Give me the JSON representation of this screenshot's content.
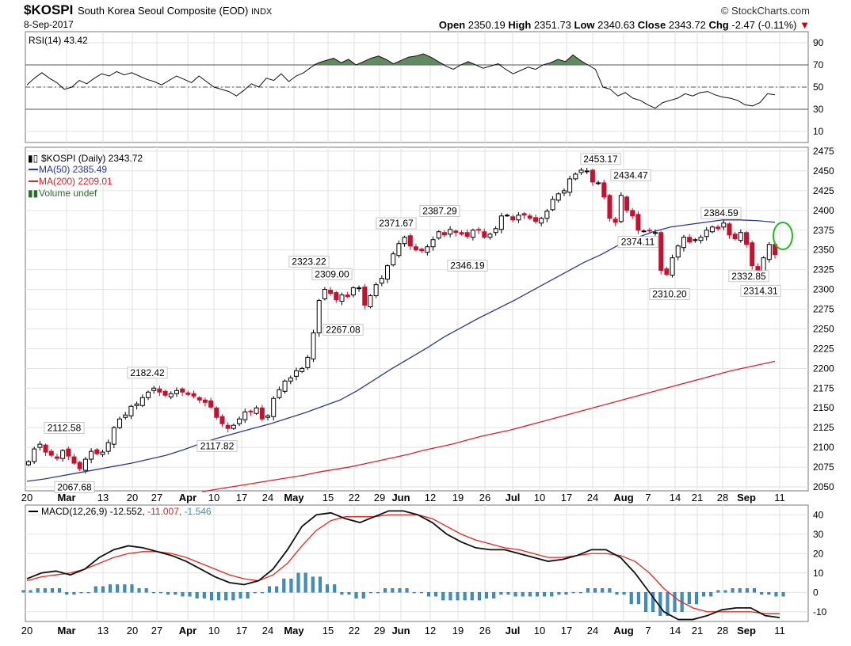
{
  "header": {
    "symbol": "$KOSPI",
    "name": "South Korea Seoul Composite (EOD)",
    "exchange": "INDX",
    "date": "8-Sep-2017",
    "brand": "© StockCharts.com",
    "open_label": "Open",
    "open": "2350.19",
    "high_label": "High",
    "high": "2351.73",
    "low_label": "Low",
    "low": "2340.63",
    "close_label": "Close",
    "close": "2343.72",
    "chg_label": "Chg",
    "chg": "-2.47 (-0.11%)"
  },
  "colors": {
    "ma50": "#2b3a8f",
    "ma200": "#d9232e",
    "up_candle": "#000000",
    "down_candle": "#c8102e",
    "rsi_fill": "#4f7d4f",
    "macd_hist": "#3b8fc4",
    "signal": "#e8261f",
    "highlight": "#22bb22"
  },
  "chart_data": [
    {
      "type": "line",
      "panel": "RSI",
      "legend": "RSI(14) 43.42",
      "ylim": [
        0,
        100
      ],
      "yticks": [
        10,
        30,
        50,
        70,
        90
      ],
      "reference_lines": [
        30,
        50,
        70
      ],
      "values": [
        52,
        58,
        63,
        58,
        54,
        48,
        50,
        56,
        53,
        58,
        62,
        60,
        64,
        61,
        63,
        60,
        57,
        55,
        52,
        56,
        60,
        57,
        54,
        60,
        55,
        50,
        48,
        46,
        42,
        47,
        53,
        50,
        58,
        56,
        62,
        55,
        60,
        63,
        68,
        72,
        74,
        76,
        72,
        75,
        70,
        73,
        76,
        78,
        75,
        71,
        74,
        77,
        78,
        80,
        77,
        73,
        69,
        66,
        70,
        73,
        70,
        67,
        69,
        71,
        66,
        62,
        65,
        68,
        66,
        70,
        72,
        75,
        73,
        79,
        74,
        70,
        66,
        50,
        48,
        42,
        45,
        40,
        38,
        34,
        31,
        36,
        38,
        40,
        44,
        42,
        45,
        46,
        43,
        41,
        40,
        38,
        34,
        33,
        36,
        44,
        43
      ]
    },
    {
      "type": "candlestick",
      "panel": "price",
      "title": "$KOSPI (Daily) 2343.72",
      "ylim": [
        2045,
        2480
      ],
      "yticks": [
        2050,
        2075,
        2100,
        2125,
        2150,
        2175,
        2200,
        2225,
        2250,
        2275,
        2300,
        2325,
        2350,
        2375,
        2400,
        2425,
        2450,
        2475
      ],
      "xlabels": [
        "20",
        "Mar",
        "13",
        "20",
        "27",
        "Apr",
        "10",
        "17",
        "24",
        "May",
        "15",
        "22",
        "29",
        "Jun",
        "12",
        "19",
        "26",
        "Jul",
        "10",
        "17",
        "24",
        "Aug",
        "7",
        "14",
        "21",
        "28",
        "Sep",
        "11"
      ],
      "close": [
        2082,
        2098,
        2104,
        2094,
        2090,
        2086,
        2096,
        2089,
        2080,
        2073,
        2085,
        2095,
        2092,
        2094,
        2106,
        2125,
        2136,
        2141,
        2152,
        2155,
        2163,
        2170,
        2175,
        2170,
        2166,
        2168,
        2172,
        2170,
        2167,
        2165,
        2160,
        2157,
        2151,
        2138,
        2130,
        2124,
        2128,
        2136,
        2145,
        2145,
        2150,
        2136,
        2140,
        2162,
        2173,
        2184,
        2188,
        2197,
        2200,
        2214,
        2245,
        2286,
        2300,
        2295,
        2287,
        2293,
        2291,
        2302,
        2302,
        2280,
        2292,
        2306,
        2314,
        2330,
        2345,
        2358,
        2366,
        2355,
        2350,
        2349,
        2354,
        2363,
        2373,
        2369,
        2376,
        2372,
        2370,
        2367,
        2375,
        2375,
        2366,
        2370,
        2377,
        2393,
        2394,
        2388,
        2394,
        2394,
        2390,
        2386,
        2390,
        2399,
        2414,
        2421,
        2425,
        2440,
        2446,
        2451,
        2450,
        2436,
        2435,
        2417,
        2390,
        2385,
        2419,
        2400,
        2393,
        2375,
        2374,
        2374,
        2372,
        2324,
        2319,
        2340,
        2355,
        2366,
        2360,
        2363,
        2366,
        2375,
        2379,
        2377,
        2384,
        2369,
        2364,
        2372,
        2357,
        2330,
        2322,
        2340,
        2357,
        2344
      ]
    },
    {
      "type": "line",
      "panel": "price-overlays",
      "series": [
        {
          "name": "MA(50) 2385.49",
          "values": [
            2057,
            2060,
            2064,
            2068,
            2072,
            2076,
            2080,
            2085,
            2090,
            2097,
            2105,
            2112,
            2118,
            2124,
            2130,
            2137,
            2144,
            2152,
            2160,
            2172,
            2186,
            2200,
            2213,
            2226,
            2240,
            2252,
            2264,
            2275,
            2286,
            2298,
            2310,
            2322,
            2334,
            2344,
            2356,
            2365,
            2373,
            2379,
            2382,
            2385,
            2388,
            2388,
            2387,
            2385
          ]
        },
        {
          "name": "MA(200) 2209.01",
          "values": [
            2044,
            2047,
            2050,
            2053,
            2056,
            2059,
            2062,
            2065,
            2069,
            2072,
            2075,
            2079,
            2083,
            2087,
            2091,
            2096,
            2100,
            2104,
            2109,
            2114,
            2118,
            2122,
            2127,
            2132,
            2137,
            2142,
            2147,
            2152,
            2157,
            2162,
            2167,
            2172,
            2177,
            2182,
            2187,
            2192,
            2197,
            2201,
            2205,
            2209
          ]
        }
      ],
      "annotations": [
        {
          "label": "2112.58",
          "value": 2112.58
        },
        {
          "label": "2067.68",
          "value": 2067.68
        },
        {
          "label": "2182.42",
          "value": 2182.42
        },
        {
          "label": "2117.82",
          "value": 2117.82
        },
        {
          "label": "2323.22",
          "value": 2323.22
        },
        {
          "label": "2309.00",
          "value": 2309.0
        },
        {
          "label": "2267.08",
          "value": 2267.08
        },
        {
          "label": "2371.67",
          "value": 2371.67
        },
        {
          "label": "2387.29",
          "value": 2387.29
        },
        {
          "label": "2346.19",
          "value": 2346.19
        },
        {
          "label": "2453.17",
          "value": 2453.17
        },
        {
          "label": "2434.47",
          "value": 2434.47
        },
        {
          "label": "2374.11",
          "value": 2374.11
        },
        {
          "label": "2310.20",
          "value": 2310.2
        },
        {
          "label": "2384.59",
          "value": 2384.59
        },
        {
          "label": "2332.85",
          "value": 2332.85
        },
        {
          "label": "2314.31",
          "value": 2314.31
        }
      ],
      "legend": [
        "$KOSPI (Daily) 2343.72",
        "MA(50) 2385.49",
        "MA(200) 2209.01",
        "Volume undef"
      ]
    },
    {
      "type": "line",
      "panel": "MACD",
      "legend_prefix": "MACD(12,26,9)",
      "legend_values": [
        "-12.552",
        "-11.007",
        "-1.546"
      ],
      "ylim": [
        -15,
        45
      ],
      "yticks": [
        -10,
        0,
        10,
        20,
        30,
        40
      ],
      "series": [
        {
          "name": "MACD",
          "values": [
            7,
            10,
            11,
            9,
            12,
            18,
            22,
            24,
            23,
            21,
            19,
            16,
            12,
            8,
            5,
            4,
            6,
            12,
            22,
            34,
            40,
            41,
            38,
            36,
            39,
            42,
            42,
            40,
            36,
            30,
            26,
            23,
            22,
            22,
            20,
            18,
            16,
            17,
            19,
            22,
            22,
            18,
            10,
            0,
            -10,
            -14,
            -14,
            -12,
            -9,
            -8,
            -8,
            -12,
            -13
          ]
        },
        {
          "name": "Signal",
          "values": [
            6,
            8,
            9,
            10,
            12,
            15,
            18,
            20,
            21,
            21,
            20,
            18,
            15,
            12,
            9,
            7,
            6,
            9,
            15,
            24,
            32,
            37,
            39,
            39,
            39,
            40,
            40,
            40,
            38,
            34,
            30,
            27,
            25,
            23,
            22,
            20,
            18,
            18,
            19,
            20,
            20,
            19,
            16,
            10,
            2,
            -4,
            -8,
            -10,
            -10,
            -10,
            -10,
            -11,
            -11
          ]
        },
        {
          "name": "Histogram",
          "values": [
            1,
            2,
            2,
            -1,
            0,
            3,
            4,
            4,
            2,
            0,
            -1,
            -2,
            -3,
            -4,
            -4,
            -3,
            0,
            3,
            7,
            10,
            8,
            4,
            -1,
            -3,
            0,
            2,
            2,
            0,
            -2,
            -4,
            -4,
            -4,
            -3,
            -1,
            -2,
            -2,
            -2,
            -1,
            0,
            2,
            2,
            -1,
            -6,
            -10,
            -12,
            -10,
            -6,
            -2,
            1,
            2,
            2,
            -1,
            -2
          ]
        }
      ]
    }
  ]
}
